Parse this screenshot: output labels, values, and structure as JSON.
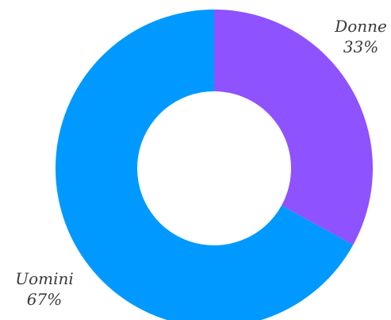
{
  "chart_data": {
    "type": "pie",
    "variant": "donut",
    "title": "",
    "slices": [
      {
        "label": "Uomini",
        "value": 67,
        "value_label": "67%",
        "color": "#0099ff"
      },
      {
        "label": "Donne",
        "value": 33,
        "value_label": "33%",
        "color": "#8e52ff"
      }
    ],
    "legend": "none"
  }
}
